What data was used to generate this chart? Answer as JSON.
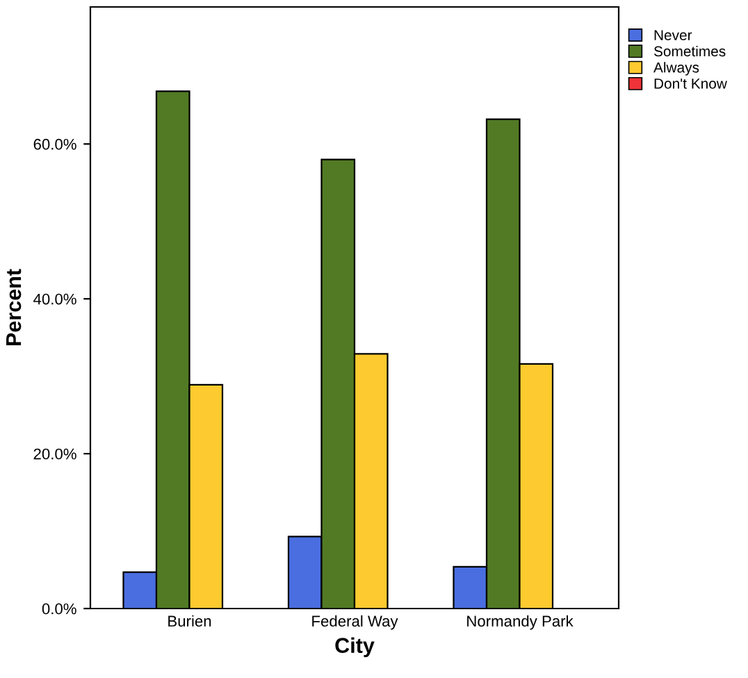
{
  "chart_data": {
    "type": "bar",
    "xlabel": "City",
    "ylabel": "Percent",
    "categories": [
      "Burien",
      "Federal Way",
      "Normandy Park"
    ],
    "series": [
      {
        "name": "Never",
        "color": "#4a6ee0",
        "values": [
          4.7,
          9.3,
          5.4
        ]
      },
      {
        "name": "Sometimes",
        "color": "#527a24",
        "values": [
          66.8,
          58.0,
          63.2
        ]
      },
      {
        "name": "Always",
        "color": "#fdcb2f",
        "values": [
          28.9,
          32.9,
          31.6
        ]
      },
      {
        "name": "Don't Know",
        "color": "#ef3338",
        "values": [
          null,
          null,
          null
        ]
      }
    ],
    "ylim": [
      0,
      77.7
    ],
    "yticks": [
      {
        "value": 0,
        "label": "0.0%"
      },
      {
        "value": 20,
        "label": "20.0%"
      },
      {
        "value": 40,
        "label": "40.0%"
      },
      {
        "value": 60,
        "label": "60.0%"
      }
    ],
    "grid": false,
    "legend": "top right"
  }
}
